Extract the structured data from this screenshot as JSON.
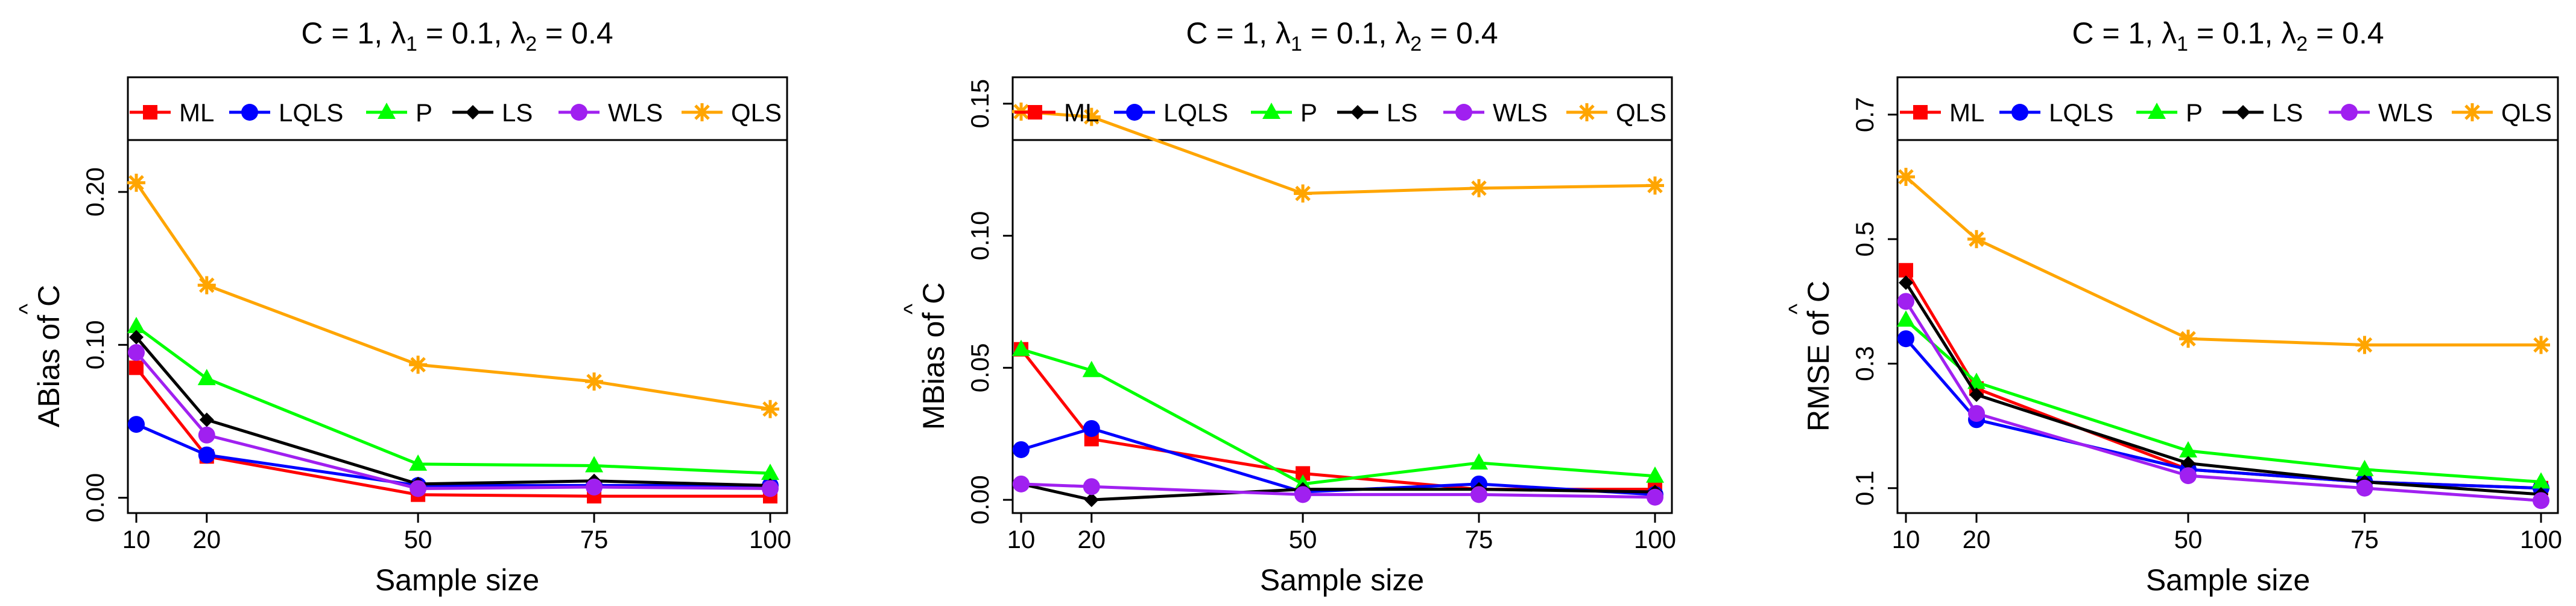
{
  "chart_data": [
    {
      "type": "line",
      "title_parts": {
        "c": "C = 1, ",
        "l1": "λ",
        "s1": "1",
        "v1": " = 0.1, ",
        "l2": "λ",
        "s2": "2",
        "v2": " = 0.4"
      },
      "ylabel": "ABias of C",
      "ylabel_hat": "^",
      "xlabel": "Sample size",
      "x": [
        10,
        20,
        50,
        75,
        100
      ],
      "x_tick_labels": [
        "10",
        "20",
        "50",
        "75",
        "100"
      ],
      "ylim": [
        -0.01,
        0.275
      ],
      "y_ticks": [
        0.0,
        0.1,
        0.2
      ],
      "y_tick_labels": [
        "0.00",
        "0.10",
        "0.20"
      ],
      "series": [
        {
          "name": "ML",
          "values": [
            0.085,
            0.027,
            0.002,
            0.001,
            0.001
          ]
        },
        {
          "name": "LQLS",
          "values": [
            0.048,
            0.028,
            0.008,
            0.008,
            0.008
          ]
        },
        {
          "name": "P",
          "values": [
            0.112,
            0.078,
            0.022,
            0.021,
            0.016
          ]
        },
        {
          "name": "LS",
          "values": [
            0.105,
            0.051,
            0.009,
            0.011,
            0.008
          ]
        },
        {
          "name": "WLS",
          "values": [
            0.095,
            0.041,
            0.006,
            0.007,
            0.006
          ]
        },
        {
          "name": "QLS",
          "values": [
            0.206,
            0.139,
            0.087,
            0.076,
            0.058
          ]
        }
      ]
    },
    {
      "type": "line",
      "title_parts": {
        "c": "C = 1, ",
        "l1": "λ",
        "s1": "1",
        "v1": " = 0.1, ",
        "l2": "λ",
        "s2": "2",
        "v2": " = 0.4"
      },
      "ylabel": "MBias of C",
      "ylabel_hat": "^",
      "xlabel": "Sample size",
      "x": [
        10,
        20,
        50,
        75,
        100
      ],
      "x_tick_labels": [
        "10",
        "20",
        "50",
        "75",
        "100"
      ],
      "ylim": [
        -0.005,
        0.16
      ],
      "y_ticks": [
        0.0,
        0.05,
        0.1,
        0.15
      ],
      "y_tick_labels": [
        "0.00",
        "0.05",
        "0.10",
        "0.15"
      ],
      "series": [
        {
          "name": "ML",
          "values": [
            0.057,
            0.023,
            0.01,
            0.004,
            0.004
          ]
        },
        {
          "name": "LQLS",
          "values": [
            0.019,
            0.027,
            0.003,
            0.006,
            0.002
          ]
        },
        {
          "name": "P",
          "values": [
            0.057,
            0.049,
            0.006,
            0.014,
            0.009
          ]
        },
        {
          "name": "LS",
          "values": [
            0.006,
            0.0,
            0.004,
            0.004,
            0.003
          ]
        },
        {
          "name": "WLS",
          "values": [
            0.006,
            0.005,
            0.002,
            0.002,
            0.001
          ]
        },
        {
          "name": "QLS",
          "values": [
            0.147,
            0.145,
            0.116,
            0.118,
            0.119
          ]
        }
      ]
    },
    {
      "type": "line",
      "title_parts": {
        "c": "C = 1, ",
        "l1": "λ",
        "s1": "1",
        "v1": " = 0.1, ",
        "l2": "λ",
        "s2": "2",
        "v2": " = 0.4"
      },
      "ylabel": "RMSE of C",
      "ylabel_hat": "^",
      "xlabel": "Sample size",
      "x": [
        10,
        20,
        50,
        75,
        100
      ],
      "x_tick_labels": [
        "10",
        "20",
        "50",
        "75",
        "100"
      ],
      "ylim": [
        0.06,
        0.76
      ],
      "y_ticks": [
        0.1,
        0.3,
        0.5,
        0.7
      ],
      "y_tick_labels": [
        "0.1",
        "0.3",
        "0.5",
        "0.7"
      ],
      "series": [
        {
          "name": "ML",
          "values": [
            0.45,
            0.26,
            0.13,
            0.11,
            0.1
          ]
        },
        {
          "name": "LQLS",
          "values": [
            0.34,
            0.21,
            0.13,
            0.11,
            0.1
          ]
        },
        {
          "name": "P",
          "values": [
            0.37,
            0.27,
            0.16,
            0.13,
            0.11
          ]
        },
        {
          "name": "LS",
          "values": [
            0.43,
            0.25,
            0.14,
            0.11,
            0.09
          ]
        },
        {
          "name": "WLS",
          "values": [
            0.4,
            0.22,
            0.12,
            0.1,
            0.08
          ]
        },
        {
          "name": "QLS",
          "values": [
            0.6,
            0.5,
            0.34,
            0.33,
            0.33
          ]
        }
      ]
    }
  ],
  "series_styles": {
    "ML": {
      "color": "#ff0000",
      "marker": "square"
    },
    "LQLS": {
      "color": "#0000ff",
      "marker": "circle"
    },
    "P": {
      "color": "#00ff00",
      "marker": "triangle"
    },
    "LS": {
      "color": "#000000",
      "marker": "diamond"
    },
    "WLS": {
      "color": "#a020f0",
      "marker": "circle"
    },
    "QLS": {
      "color": "#ffa500",
      "marker": "asterisk"
    }
  }
}
